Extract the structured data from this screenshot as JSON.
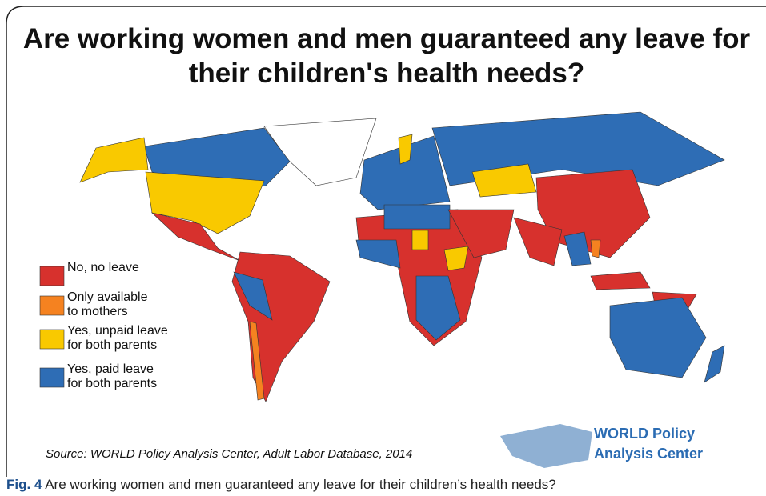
{
  "title_lines": [
    "Are working women and men guaranteed any leave for",
    "their children's health needs?"
  ],
  "legend": {
    "items": [
      {
        "lines": [
          "No, no leave"
        ],
        "color": "#d7312d"
      },
      {
        "lines": [
          "Only available",
          "to mothers"
        ],
        "color": "#f58220"
      },
      {
        "lines": [
          "Yes, unpaid leave",
          "for both parents"
        ],
        "color": "#f9c900"
      },
      {
        "lines": [
          "Yes, paid leave",
          "for both parents"
        ],
        "color": "#2e6db5"
      }
    ]
  },
  "source": "Source: WORLD Policy Analysis Center, Adult Labor Database, 2014",
  "logo": {
    "lines": [
      "WORLD Policy",
      "Analysis Center"
    ]
  },
  "caption": {
    "label": "Fig. 4",
    "text": "Are working women and men guaranteed any leave for their children’s health needs?"
  }
}
